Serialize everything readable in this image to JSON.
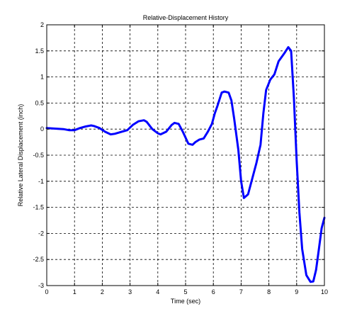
{
  "chart_data": {
    "type": "line",
    "title": "Relative-Displacement History",
    "xlabel": "Time (sec)",
    "ylabel": "Relative Lateral Displacement (inch)",
    "xlim": [
      0,
      10
    ],
    "ylim": [
      -3,
      2
    ],
    "xticks": [
      "0",
      "1",
      "2",
      "3",
      "4",
      "5",
      "6",
      "7",
      "8",
      "9",
      "10"
    ],
    "yticks": [
      "2",
      "1.5",
      "1",
      "0.5",
      "0",
      "-0.5",
      "-1",
      "-1.5",
      "-2",
      "-2.5",
      "-3"
    ],
    "grid": true,
    "line_color": "#0000ff",
    "series": [
      {
        "x": [
          0,
          0.3,
          0.6,
          0.8,
          1.0,
          1.2,
          1.4,
          1.6,
          1.7,
          1.9,
          2.1,
          2.3,
          2.45,
          2.7,
          2.9,
          3.1,
          3.3,
          3.5,
          3.6,
          3.8,
          4.0,
          4.1,
          4.3,
          4.5,
          4.6,
          4.75,
          4.9,
          5.1,
          5.25,
          5.35,
          5.5,
          5.65,
          5.8,
          5.95,
          6.05,
          6.15,
          6.3,
          6.4,
          6.55,
          6.65,
          6.75,
          6.9,
          7.0,
          7.1,
          7.25,
          7.4,
          7.55,
          7.7,
          7.8,
          7.9,
          8.05,
          8.2,
          8.35,
          8.55,
          8.7,
          8.8,
          8.9,
          9.0,
          9.1,
          9.2,
          9.35,
          9.5,
          9.6,
          9.7,
          9.8,
          9.9,
          10.0
        ],
        "y": [
          0.02,
          0.01,
          0.0,
          -0.02,
          -0.02,
          0.02,
          0.05,
          0.07,
          0.06,
          0.02,
          -0.05,
          -0.1,
          -0.09,
          -0.05,
          -0.02,
          0.08,
          0.15,
          0.17,
          0.14,
          0.0,
          -0.08,
          -0.1,
          -0.05,
          0.08,
          0.12,
          0.1,
          -0.05,
          -0.28,
          -0.3,
          -0.25,
          -0.2,
          -0.18,
          -0.05,
          0.1,
          0.3,
          0.45,
          0.7,
          0.72,
          0.7,
          0.55,
          0.2,
          -0.4,
          -1.0,
          -1.32,
          -1.25,
          -0.95,
          -0.65,
          -0.3,
          0.3,
          0.75,
          0.95,
          1.05,
          1.3,
          1.45,
          1.57,
          1.5,
          0.6,
          -0.6,
          -1.6,
          -2.3,
          -2.8,
          -2.93,
          -2.92,
          -2.7,
          -2.3,
          -1.9,
          -1.7
        ]
      }
    ]
  }
}
